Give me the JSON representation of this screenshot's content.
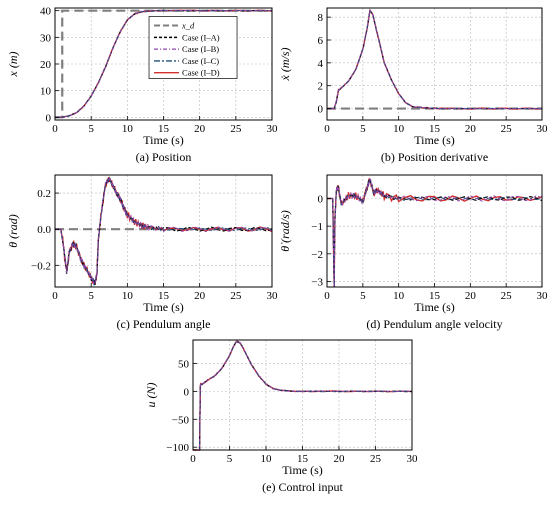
{
  "colors": {
    "ref": "#7f7f7f",
    "caseA": "#000000",
    "caseB": "#8e44ad",
    "caseC": "#1f4e79",
    "caseD": "#d32f2f",
    "grid": "#bbbbbb"
  },
  "legend": {
    "entries": [
      "x_d",
      "Case (I–A)",
      "Case (I–B)",
      "Case (I–C)",
      "Case (I–D)"
    ]
  },
  "chart_data": [
    {
      "id": "a",
      "type": "line",
      "caption": "(a) Position",
      "xlabel": "Time (s)",
      "ylabel": "x (m)",
      "xlim": [
        0,
        30
      ],
      "ylim": [
        -1,
        41
      ],
      "xticks": [
        0,
        5,
        10,
        15,
        20,
        25,
        30
      ],
      "yticks": [
        0,
        10,
        20,
        30,
        40
      ],
      "grid": true,
      "legend": "top-right",
      "reference": {
        "x": [
          0,
          1,
          1,
          30
        ],
        "y": [
          0,
          0,
          40,
          40
        ]
      },
      "series": [
        {
          "x": [
            0,
            1,
            2,
            3,
            4,
            5,
            6,
            7,
            8,
            9,
            10,
            11,
            12,
            14,
            16,
            20,
            25,
            30
          ],
          "y": [
            0,
            0.05,
            0.6,
            1.8,
            4.2,
            8,
            13,
            19,
            26,
            32,
            36.5,
            38.8,
            39.6,
            40,
            40,
            40,
            40,
            40
          ]
        }
      ]
    },
    {
      "id": "b",
      "type": "line",
      "caption": "(b) Position derivative",
      "xlabel": "Time (s)",
      "ylabel": "ẋ (m/s)",
      "xlim": [
        0,
        30
      ],
      "ylim": [
        -1,
        8.8
      ],
      "xticks": [
        0,
        5,
        10,
        15,
        20,
        25,
        30
      ],
      "yticks": [
        0,
        2,
        4,
        6,
        8
      ],
      "grid": true,
      "reference": {
        "x": [
          0,
          30
        ],
        "y": [
          0,
          0
        ]
      },
      "series": [
        {
          "x": [
            0,
            1,
            1.3,
            1.6,
            2,
            3,
            4,
            5,
            5.6,
            6,
            6.4,
            7,
            8,
            9,
            10,
            11,
            12,
            14,
            16,
            20,
            25,
            30
          ],
          "y": [
            0,
            0,
            0.6,
            1.6,
            1.8,
            2.4,
            3.4,
            5.2,
            7,
            8.6,
            8.2,
            6.6,
            4,
            2.5,
            1.3,
            0.5,
            0.15,
            0.05,
            0,
            0,
            0,
            0
          ]
        }
      ]
    },
    {
      "id": "c",
      "type": "line",
      "caption": "(c) Pendulum angle",
      "xlabel": "Time (s)",
      "ylabel": "θ (rad)",
      "xlim": [
        0,
        30
      ],
      "ylim": [
        -0.32,
        0.3
      ],
      "xticks": [
        0,
        5,
        10,
        15,
        20,
        25,
        30
      ],
      "yticks": [
        -0.2,
        0.0,
        0.2
      ],
      "grid": true,
      "reference": {
        "x": [
          0,
          30
        ],
        "y": [
          0,
          0
        ]
      },
      "series": [
        {
          "x": [
            0,
            0.8,
            1.2,
            1.6,
            2,
            2.5,
            3,
            3.5,
            4,
            4.5,
            5,
            5.5,
            5.8,
            6,
            6.5,
            7,
            7.5,
            8,
            8.5,
            9,
            9.5,
            10,
            11,
            12,
            13,
            15,
            20,
            25,
            30
          ],
          "y": [
            0,
            0,
            -0.1,
            -0.24,
            -0.12,
            -0.08,
            -0.1,
            -0.16,
            -0.2,
            -0.23,
            -0.27,
            -0.3,
            -0.25,
            -0.05,
            0.12,
            0.25,
            0.28,
            0.24,
            0.2,
            0.17,
            0.12,
            0.08,
            0.04,
            0.02,
            0.01,
            0,
            0,
            0,
            0
          ]
        }
      ]
    },
    {
      "id": "d",
      "type": "line",
      "caption": "(d) Pendulum angle velocity",
      "xlabel": "Time (s)",
      "ylabel": "θ̇ (rad/s)",
      "xlim": [
        0,
        30
      ],
      "ylim": [
        -3.2,
        0.85
      ],
      "xticks": [
        0,
        5,
        10,
        15,
        20,
        25,
        30
      ],
      "yticks": [
        -3,
        -2,
        -1,
        0
      ],
      "grid": true,
      "series": [
        {
          "x": [
            0,
            0.8,
            1.0,
            1.1,
            1.3,
            1.6,
            2,
            3,
            4,
            5,
            5.6,
            6,
            6.5,
            7,
            8,
            10,
            15,
            20,
            25,
            30
          ],
          "y": [
            0,
            0,
            -3.2,
            -0.8,
            0.3,
            0.4,
            -0.2,
            0.1,
            0.1,
            -0.1,
            0.4,
            0.7,
            0.2,
            0.3,
            0.1,
            0,
            0,
            0,
            0,
            0
          ]
        }
      ]
    },
    {
      "id": "e",
      "type": "line",
      "caption": "(e) Control input",
      "xlabel": "Time (s)",
      "ylabel": "u (N)",
      "xlim": [
        0,
        30
      ],
      "ylim": [
        -105,
        92
      ],
      "xticks": [
        0,
        5,
        10,
        15,
        20,
        25,
        30
      ],
      "yticks": [
        -100,
        -50,
        0,
        50
      ],
      "grid": true,
      "series": [
        {
          "x": [
            0,
            0.5,
            0.9,
            1.0,
            1.1,
            1.5,
            2,
            3,
            4,
            5,
            5.6,
            6,
            6.5,
            7,
            8,
            9,
            10,
            11,
            12,
            14,
            16,
            20,
            25,
            30
          ],
          "y": [
            -105,
            -105,
            -105,
            10,
            12,
            15,
            20,
            28,
            42,
            64,
            82,
            90,
            86,
            74,
            48,
            28,
            13,
            5,
            2,
            0,
            0,
            0,
            0,
            0
          ]
        }
      ]
    }
  ]
}
